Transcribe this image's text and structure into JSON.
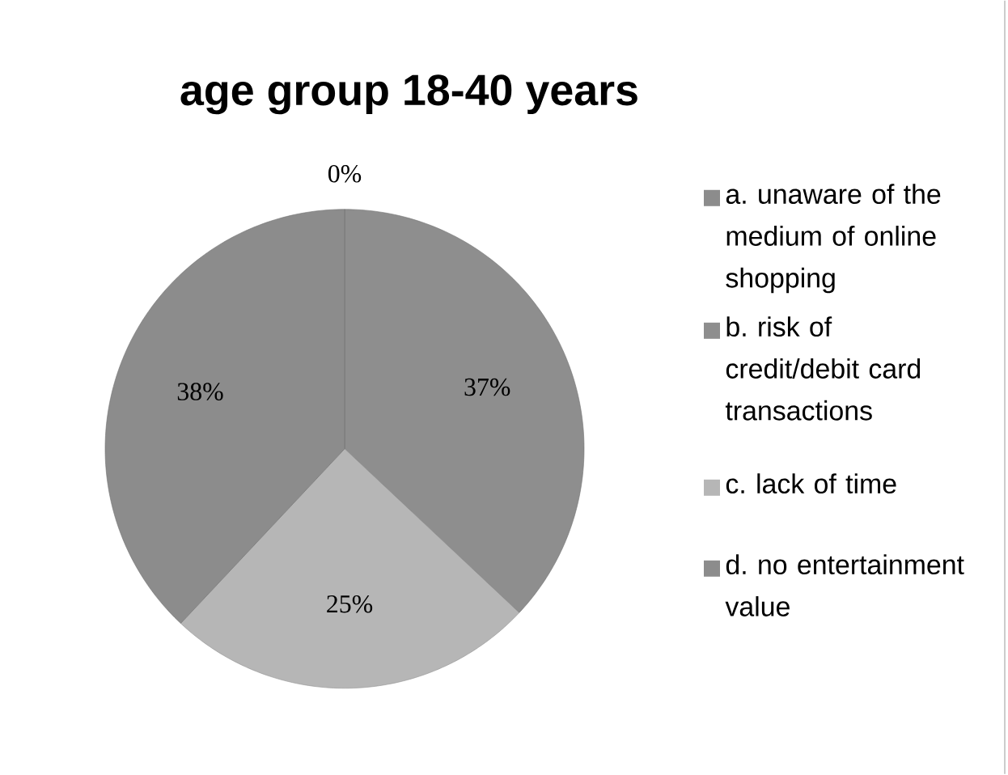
{
  "chart_data": {
    "type": "pie",
    "title": "age group 18-40 years",
    "categories": [
      "a. unaware of the medium of online shopping",
      "b. risk of credit/debit card transactions",
      "c. lack of time",
      "d. no entertainment value"
    ],
    "values": [
      0,
      37,
      25,
      38
    ],
    "colors": [
      "#8c8c8c",
      "#8e8e8e",
      "#b6b6b6",
      "#8c8c8c"
    ],
    "value_labels": [
      "0%",
      "37%",
      "25%",
      "38%"
    ],
    "legend": "right"
  }
}
